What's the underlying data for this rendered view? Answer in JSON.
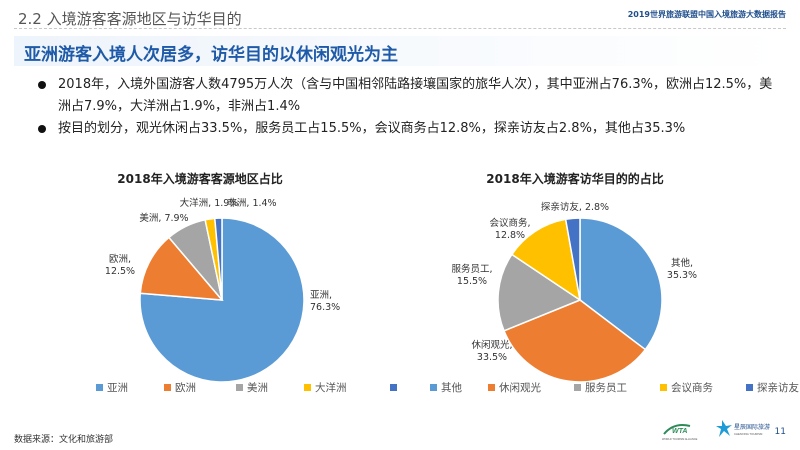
{
  "header": {
    "section_title": "2.2 入境游客客源地区与访华目的",
    "report_title": "2019世界旅游联盟中国入境旅游大数据报告"
  },
  "headline": "亚洲游客入境人次居多，访华目的以休闲观光为主",
  "bullets": [
    "2018年，入境外国游客人数4795万人次（含与中国相邻陆路接壤国家的旅华人次），其中亚洲占76.3%，欧洲占12.5%，美洲占7.9%，大洋洲占1.9%，非洲占1.4%",
    "按目的划分，观光休闲占33.5%，服务员工占15.5%，会议商务占12.8%，探亲访友占2.8%，其他占35.3%"
  ],
  "chart_data": [
    {
      "type": "pie",
      "title": "2018年入境游客客源地区占比",
      "categories": [
        "亚洲",
        "欧洲",
        "美洲",
        "大洋洲",
        "非洲"
      ],
      "values": [
        76.3,
        12.5,
        7.9,
        1.9,
        1.4
      ],
      "data_labels": [
        "亚洲,\n76.3%",
        "欧洲,\n12.5%",
        "美洲, 7.9%",
        "大洋洲, 1.9%",
        "非洲, 1.4%"
      ],
      "colors": [
        "#5b9bd5",
        "#ed7d31",
        "#a5a5a5",
        "#ffc000",
        "#4472c4"
      ],
      "legend_position": "bottom"
    },
    {
      "type": "pie",
      "title": "2018年入境游客访华目的的占比",
      "categories": [
        "其他",
        "休闲观光",
        "服务员工",
        "会议商务",
        "探亲访友"
      ],
      "values": [
        35.3,
        33.5,
        15.5,
        12.8,
        2.8
      ],
      "data_labels": [
        "其他,\n35.3%",
        "休闲观光,\n33.5%",
        "服务员工,\n15.5%",
        "会议商务,\n12.8%",
        "探亲访友, 2.8%"
      ],
      "colors": [
        "#5b9bd5",
        "#ed7d31",
        "#a5a5a5",
        "#ffc000",
        "#4472c4"
      ],
      "legend_position": "bottom"
    }
  ],
  "footer": {
    "source": "数据来源：文化和旅游部",
    "page_number": "11",
    "logo_text_1": "WTA",
    "logo_text_2": "WORLD TOURISM ALLIANCE",
    "logo_text_3": "星辰国际旅游",
    "logo_text_4": "CHENXING TOURISM"
  },
  "icons": {
    "wta_logo": "wta-logo-icon",
    "partner_logo": "star-person-logo-icon"
  }
}
